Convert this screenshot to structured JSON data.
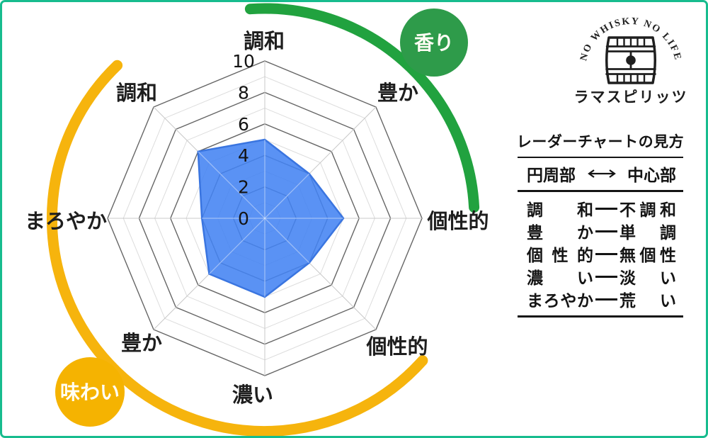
{
  "frame_color": "#17BC8E",
  "logo": {
    "arc_text": "NO WHISKY NO LIFE",
    "brand": "ラマスピリッツ"
  },
  "legend": {
    "title": "レーダーチャートの見方",
    "header": {
      "left": "円周部",
      "right": "中心部",
      "arrow": "⟷"
    },
    "rows": [
      {
        "outer": "調和",
        "inner": "不調和"
      },
      {
        "outer": "豊か",
        "inner": "単調"
      },
      {
        "outer": "個性的",
        "inner": "無個性"
      },
      {
        "outer": "濃い",
        "inner": "淡い"
      },
      {
        "outer": "まろやか",
        "inner": "荒い"
      }
    ]
  },
  "chart_data": {
    "type": "radar",
    "axis_labels": [
      "調和",
      "豊か",
      "個性的",
      "個性的",
      "濃い",
      "豊か",
      "まろやか",
      "調和"
    ],
    "values": [
      5,
      4,
      5,
      4,
      5,
      5,
      4,
      6
    ],
    "ticks": [
      0,
      2,
      4,
      6,
      8,
      10
    ],
    "range": [
      0,
      10
    ],
    "grid": "concentric-octagons-every-1-major-every-2",
    "series_color": "#4383F3",
    "series_border_color": "#3A75E0",
    "sections": [
      {
        "label": "香り",
        "color": "#2E9B4A",
        "arc_color": "#21A23F",
        "covers": [
          "調和",
          "豊か",
          "個性的"
        ]
      },
      {
        "label": "味わい",
        "color": "#F5B301",
        "arc_color": "#F6B40D",
        "covers": [
          "個性的",
          "濃い",
          "豊か",
          "まろやか",
          "調和"
        ]
      }
    ]
  }
}
